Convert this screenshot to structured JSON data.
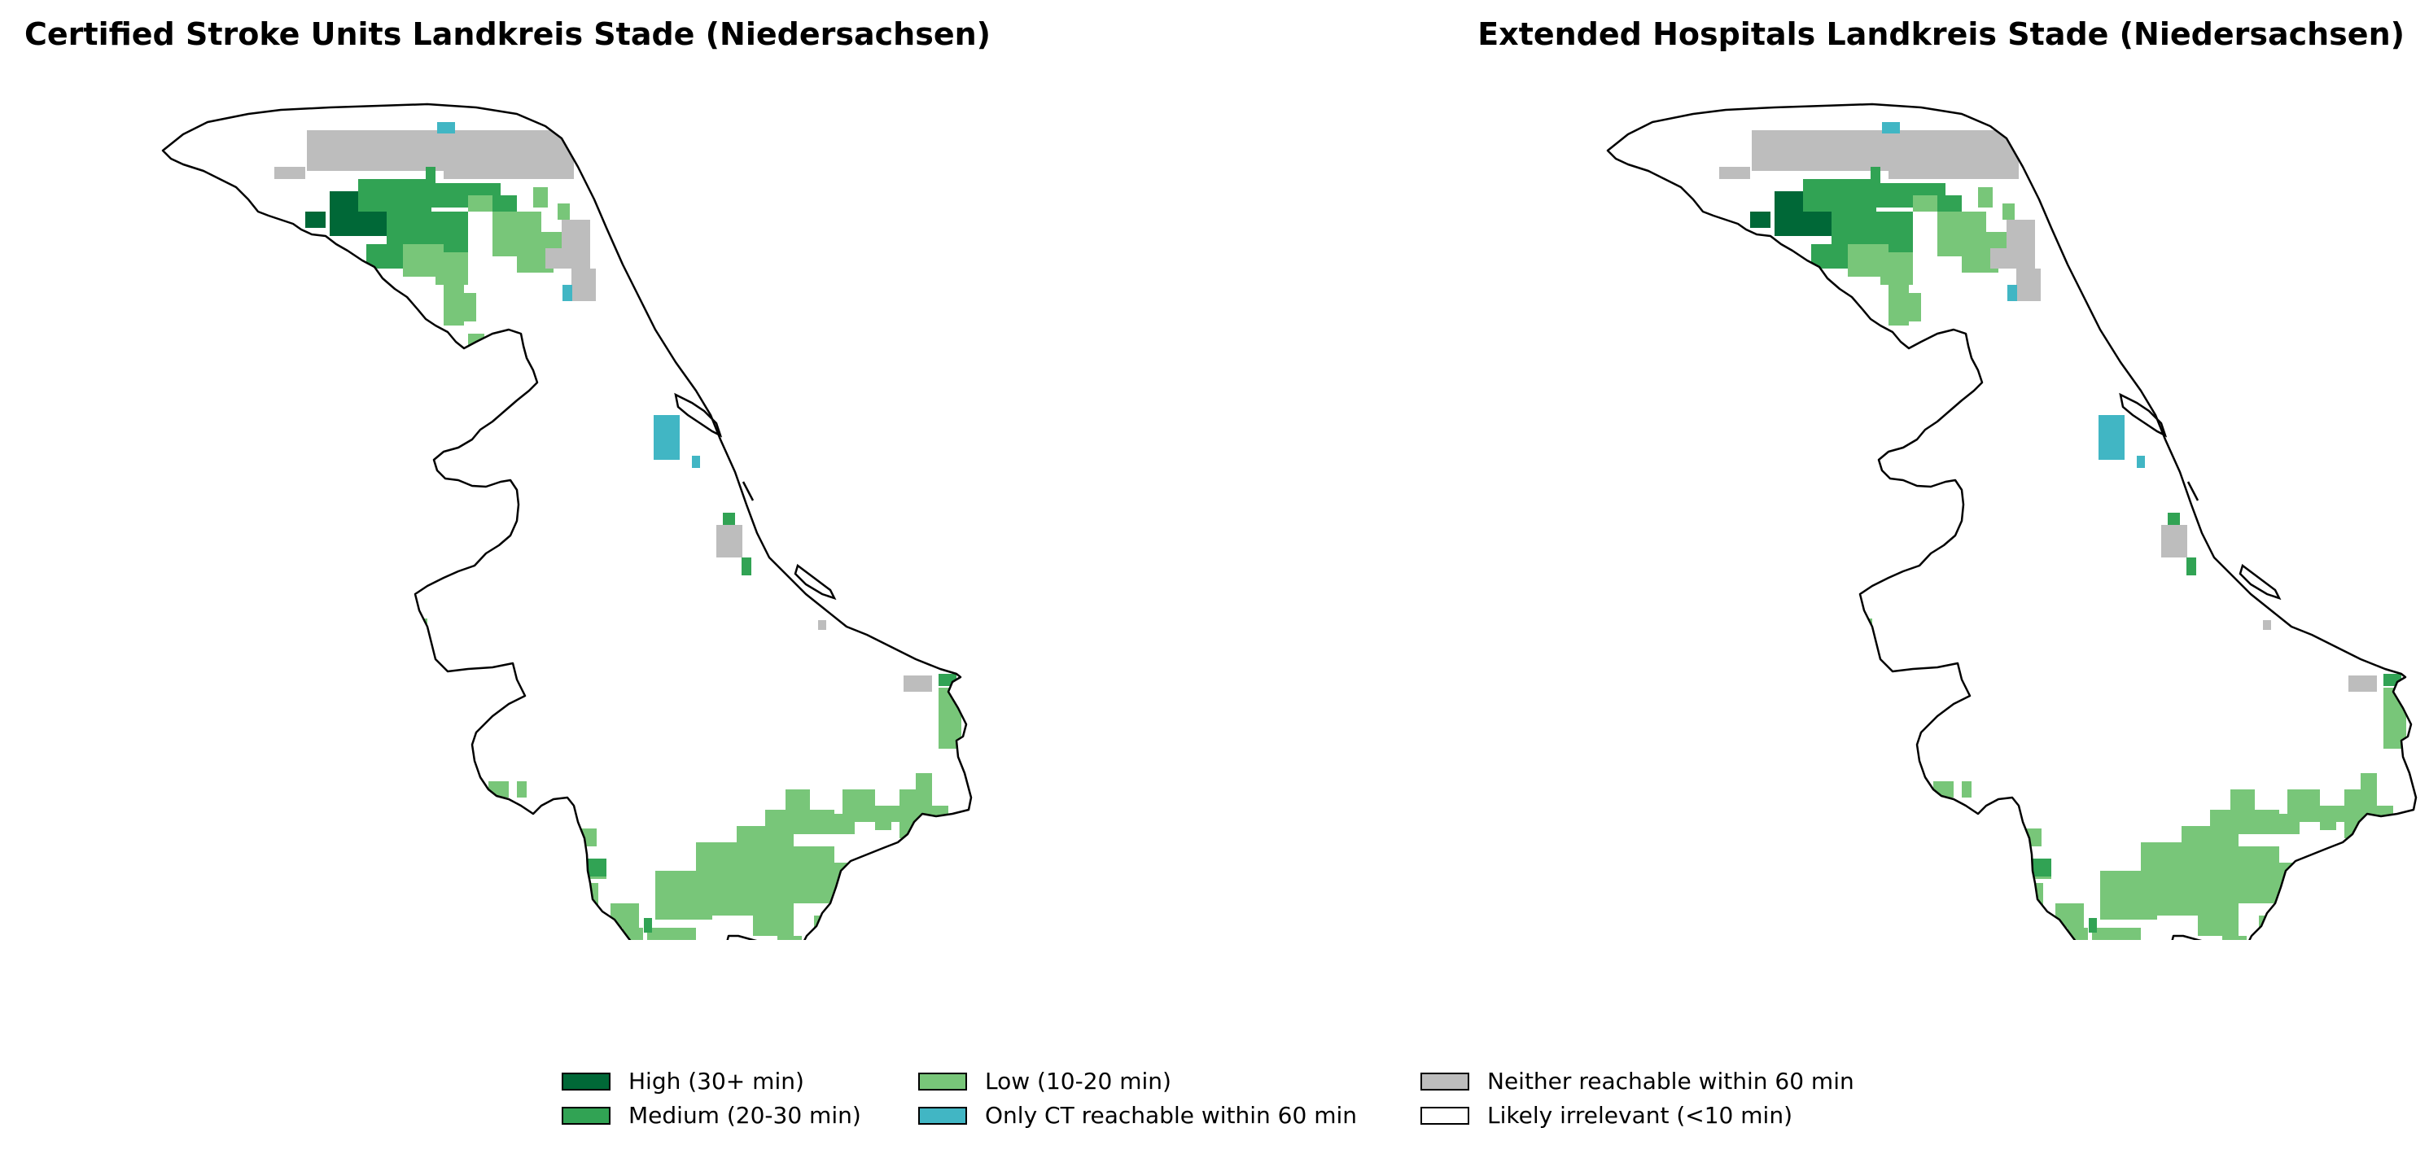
{
  "colors": {
    "high": "#006837",
    "medium": "#31a354",
    "low": "#78c679",
    "ct_only": "#41b6c4",
    "neither": "#bdbdbd",
    "irrelevant": "#ffffff",
    "outline": "#000000"
  },
  "panels": [
    {
      "title": "Certified Stroke Units Landkreis Stade (Niedersachsen)",
      "cells": [
        [
          "neither",
          212,
          50,
          180,
          50
        ],
        [
          "neither",
          172,
          95,
          38,
          15
        ],
        [
          "neither",
          380,
          50,
          160,
          60
        ],
        [
          "ct_only",
          372,
          40,
          22,
          14
        ],
        [
          "medium",
          358,
          95,
          12,
          45
        ],
        [
          "high",
          240,
          125,
          110,
          55
        ],
        [
          "high",
          210,
          150,
          25,
          20
        ],
        [
          "medium",
          275,
          110,
          90,
          40
        ],
        [
          "medium",
          310,
          150,
          100,
          60
        ],
        [
          "medium",
          360,
          115,
          90,
          30
        ],
        [
          "medium",
          440,
          130,
          30,
          20
        ],
        [
          "medium",
          285,
          190,
          55,
          30
        ],
        [
          "low",
          330,
          190,
          50,
          40
        ],
        [
          "low",
          370,
          200,
          40,
          40
        ],
        [
          "low",
          410,
          130,
          30,
          20
        ],
        [
          "low",
          440,
          150,
          60,
          55
        ],
        [
          "low",
          490,
          120,
          18,
          25
        ],
        [
          "low",
          500,
          175,
          38,
          30
        ],
        [
          "low",
          470,
          205,
          45,
          20
        ],
        [
          "low",
          520,
          140,
          15,
          20
        ],
        [
          "low",
          380,
          240,
          25,
          50
        ],
        [
          "low",
          405,
          250,
          15,
          35
        ],
        [
          "low",
          410,
          300,
          20,
          20
        ],
        [
          "low",
          417,
          328,
          12,
          22
        ],
        [
          "neither",
          525,
          160,
          35,
          60
        ],
        [
          "neither",
          537,
          220,
          30,
          40
        ],
        [
          "neither",
          505,
          195,
          30,
          25
        ],
        [
          "ct_only",
          526,
          240,
          12,
          20
        ],
        [
          "ct_only",
          638,
          400,
          32,
          55
        ],
        [
          "ct_only",
          685,
          450,
          10,
          15
        ],
        [
          "medium",
          723,
          520,
          15,
          20
        ],
        [
          "neither",
          715,
          535,
          32,
          40
        ],
        [
          "medium",
          746,
          575,
          12,
          22
        ],
        [
          "neither",
          840,
          652,
          10,
          12
        ],
        [
          "low",
          350,
          650,
          10,
          70
        ],
        [
          "low",
          360,
          700,
          10,
          30
        ],
        [
          "neither",
          945,
          720,
          35,
          20
        ],
        [
          "medium",
          988,
          718,
          22,
          15
        ],
        [
          "low",
          988,
          735,
          28,
          75
        ],
        [
          "low",
          435,
          850,
          25,
          20
        ],
        [
          "low",
          470,
          850,
          12,
          20
        ],
        [
          "low",
          548,
          908,
          20,
          22
        ],
        [
          "low",
          548,
          945,
          32,
          25
        ],
        [
          "low",
          550,
          975,
          20,
          30
        ],
        [
          "low",
          570,
          960,
          10,
          10
        ],
        [
          "medium",
          552,
          945,
          28,
          22
        ],
        [
          "low",
          585,
          1000,
          35,
          30
        ],
        [
          "low",
          600,
          1030,
          25,
          40
        ],
        [
          "low",
          600,
          1070,
          50,
          40
        ],
        [
          "low",
          630,
          1030,
          60,
          80
        ],
        [
          "low",
          650,
          1050,
          35,
          60
        ],
        [
          "medium",
          626,
          1018,
          10,
          18
        ],
        [
          "low",
          640,
          960,
          70,
          60
        ],
        [
          "low",
          690,
          925,
          70,
          90
        ],
        [
          "low",
          740,
          905,
          70,
          100
        ],
        [
          "low",
          800,
          930,
          60,
          70
        ],
        [
          "low",
          850,
          950,
          40,
          40
        ],
        [
          "low",
          775,
          885,
          85,
          30
        ],
        [
          "low",
          800,
          860,
          30,
          30
        ],
        [
          "low",
          855,
          890,
          30,
          25
        ],
        [
          "low",
          870,
          860,
          40,
          40
        ],
        [
          "low",
          880,
          880,
          60,
          20
        ],
        [
          "low",
          910,
          880,
          20,
          30
        ],
        [
          "low",
          940,
          860,
          40,
          60
        ],
        [
          "low",
          960,
          840,
          20,
          30
        ],
        [
          "low",
          975,
          880,
          25,
          25
        ],
        [
          "low",
          760,
          1005,
          50,
          35
        ],
        [
          "low",
          790,
          1040,
          30,
          15
        ],
        [
          "low",
          835,
          1015,
          25,
          15
        ],
        [
          "low",
          870,
          1000,
          20,
          20
        ],
        [
          "low",
          890,
          1040,
          20,
          15
        ],
        [
          "low",
          680,
          1095,
          10,
          20
        ],
        [
          "low",
          800,
          1040,
          15,
          25
        ],
        [
          "low",
          730,
          1100,
          20,
          10
        ],
        [
          "low",
          805,
          1060,
          15,
          15
        ]
      ]
    },
    {
      "title": "Extended Hospitals Landkreis Stade (Niedersachsen)",
      "cells": [
        [
          "neither",
          212,
          50,
          180,
          50
        ],
        [
          "neither",
          172,
          95,
          38,
          15
        ],
        [
          "neither",
          380,
          50,
          160,
          60
        ],
        [
          "ct_only",
          372,
          40,
          22,
          14
        ],
        [
          "medium",
          358,
          95,
          12,
          45
        ],
        [
          "high",
          240,
          125,
          110,
          55
        ],
        [
          "high",
          210,
          150,
          25,
          20
        ],
        [
          "medium",
          275,
          110,
          90,
          40
        ],
        [
          "medium",
          310,
          150,
          100,
          60
        ],
        [
          "medium",
          360,
          115,
          90,
          30
        ],
        [
          "medium",
          440,
          130,
          30,
          20
        ],
        [
          "medium",
          285,
          190,
          55,
          30
        ],
        [
          "low",
          330,
          190,
          50,
          40
        ],
        [
          "low",
          370,
          200,
          40,
          40
        ],
        [
          "low",
          410,
          130,
          30,
          20
        ],
        [
          "low",
          440,
          150,
          60,
          55
        ],
        [
          "low",
          490,
          120,
          18,
          25
        ],
        [
          "low",
          500,
          175,
          38,
          30
        ],
        [
          "low",
          470,
          205,
          45,
          20
        ],
        [
          "low",
          520,
          140,
          15,
          20
        ],
        [
          "low",
          380,
          240,
          25,
          50
        ],
        [
          "low",
          405,
          250,
          15,
          35
        ],
        [
          "low",
          417,
          328,
          12,
          22
        ],
        [
          "neither",
          525,
          160,
          35,
          60
        ],
        [
          "neither",
          537,
          220,
          30,
          40
        ],
        [
          "neither",
          505,
          195,
          30,
          25
        ],
        [
          "ct_only",
          526,
          240,
          12,
          20
        ],
        [
          "ct_only",
          638,
          400,
          32,
          55
        ],
        [
          "ct_only",
          685,
          450,
          10,
          15
        ],
        [
          "medium",
          723,
          520,
          15,
          20
        ],
        [
          "neither",
          715,
          535,
          32,
          40
        ],
        [
          "medium",
          746,
          575,
          12,
          22
        ],
        [
          "neither",
          840,
          652,
          10,
          12
        ],
        [
          "low",
          350,
          650,
          10,
          70
        ],
        [
          "low",
          360,
          700,
          10,
          30
        ],
        [
          "neither",
          945,
          720,
          35,
          20
        ],
        [
          "medium",
          988,
          718,
          22,
          15
        ],
        [
          "low",
          988,
          735,
          28,
          75
        ],
        [
          "low",
          435,
          850,
          25,
          20
        ],
        [
          "low",
          470,
          850,
          12,
          20
        ],
        [
          "low",
          548,
          908,
          20,
          22
        ],
        [
          "low",
          548,
          945,
          32,
          25
        ],
        [
          "low",
          550,
          975,
          20,
          30
        ],
        [
          "low",
          570,
          960,
          10,
          10
        ],
        [
          "medium",
          552,
          945,
          28,
          22
        ],
        [
          "low",
          585,
          1000,
          35,
          30
        ],
        [
          "low",
          600,
          1030,
          25,
          40
        ],
        [
          "low",
          600,
          1070,
          50,
          40
        ],
        [
          "low",
          630,
          1030,
          60,
          80
        ],
        [
          "low",
          650,
          1050,
          35,
          60
        ],
        [
          "medium",
          626,
          1018,
          10,
          18
        ],
        [
          "low",
          640,
          960,
          70,
          60
        ],
        [
          "low",
          690,
          925,
          70,
          90
        ],
        [
          "low",
          740,
          905,
          70,
          100
        ],
        [
          "low",
          800,
          930,
          60,
          70
        ],
        [
          "low",
          850,
          950,
          40,
          40
        ],
        [
          "low",
          775,
          885,
          85,
          30
        ],
        [
          "low",
          800,
          860,
          30,
          30
        ],
        [
          "low",
          855,
          890,
          30,
          25
        ],
        [
          "low",
          870,
          860,
          40,
          40
        ],
        [
          "low",
          880,
          880,
          60,
          20
        ],
        [
          "low",
          910,
          880,
          20,
          30
        ],
        [
          "low",
          940,
          860,
          40,
          60
        ],
        [
          "low",
          960,
          840,
          20,
          30
        ],
        [
          "low",
          975,
          880,
          25,
          25
        ],
        [
          "low",
          760,
          1005,
          50,
          35
        ],
        [
          "low",
          790,
          1040,
          30,
          15
        ],
        [
          "low",
          835,
          1015,
          25,
          15
        ],
        [
          "low",
          870,
          1000,
          20,
          20
        ],
        [
          "low",
          890,
          1040,
          20,
          15
        ],
        [
          "low",
          680,
          1095,
          10,
          20
        ],
        [
          "low",
          800,
          1040,
          15,
          25
        ],
        [
          "low",
          730,
          1100,
          20,
          10
        ],
        [
          "low",
          805,
          1060,
          15,
          15
        ]
      ]
    }
  ],
  "legend": [
    {
      "key": "high",
      "label": "High (30+ min)"
    },
    {
      "key": "medium",
      "label": "Medium (20-30 min)"
    },
    {
      "key": "low",
      "label": "Low (10-20 min)"
    },
    {
      "key": "ct_only",
      "label": "Only CT reachable within 60 min"
    },
    {
      "key": "neither",
      "label": "Neither reachable within 60 min"
    },
    {
      "key": "irrelevant",
      "label": "Likely irrelevant (<10 min)"
    }
  ]
}
